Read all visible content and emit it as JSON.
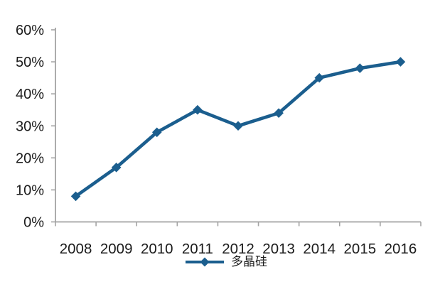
{
  "chart_data": {
    "type": "line",
    "title": "",
    "xlabel": "",
    "ylabel": "",
    "categories": [
      "2008",
      "2009",
      "2010",
      "2011",
      "2012",
      "2013",
      "2014",
      "2015",
      "2016"
    ],
    "series": [
      {
        "name": "多晶硅",
        "values": [
          8,
          17,
          28,
          35,
          30,
          34,
          45,
          48,
          50
        ]
      }
    ],
    "ylim": [
      0,
      60
    ],
    "ytick_step": 10,
    "ytick_labels": [
      "0%",
      "10%",
      "20%",
      "30%",
      "40%",
      "50%",
      "60%"
    ],
    "grid": false,
    "legend_position": "bottom-center",
    "marker_shape": "diamond",
    "colors": {
      "line": "#1b5e8e",
      "axis": "#a3a3a3",
      "text": "#1c1c1c",
      "background": "#ffffff"
    }
  }
}
